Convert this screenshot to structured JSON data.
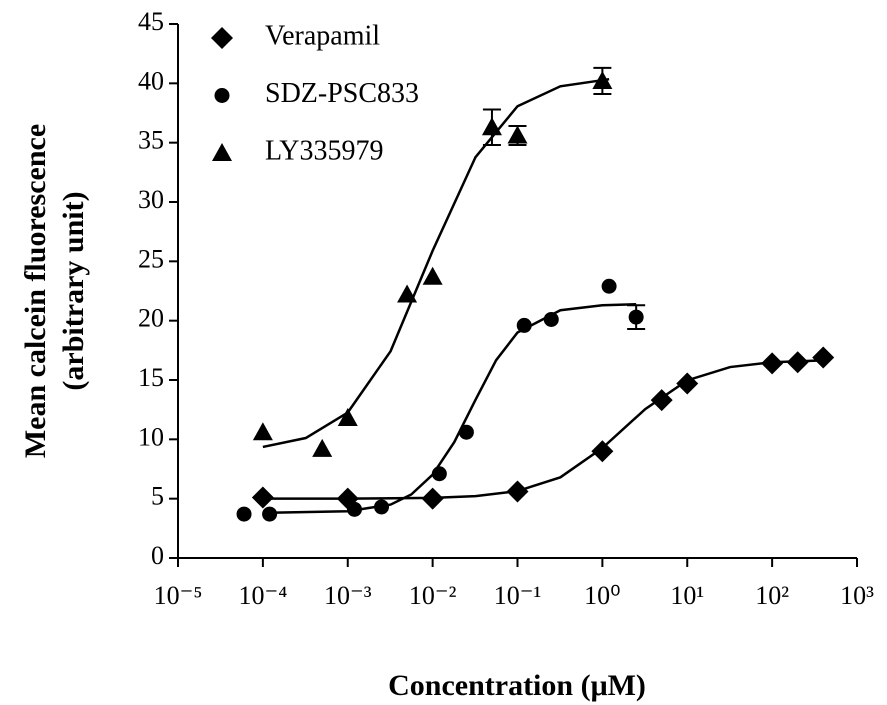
{
  "chart_data": {
    "type": "scatter",
    "x_label": "Concentration (μM)",
    "y_label": [
      "Mean calcein fluorescence",
      "(arbitrary unit)"
    ],
    "xscale": "log",
    "xlim": [
      1e-05,
      1000
    ],
    "xticks": [
      {
        "value": 1e-05,
        "label": "10⁻⁵"
      },
      {
        "value": 0.0001,
        "label": "10⁻⁴"
      },
      {
        "value": 0.001,
        "label": "10⁻³"
      },
      {
        "value": 0.01,
        "label": "10⁻²"
      },
      {
        "value": 0.1,
        "label": "10⁻¹"
      },
      {
        "value": 1,
        "label": "10⁰"
      },
      {
        "value": 10,
        "label": "10¹"
      },
      {
        "value": 100,
        "label": "10²"
      },
      {
        "value": 1000,
        "label": "10³"
      }
    ],
    "ylim": [
      0,
      45
    ],
    "yticks": [
      0,
      5,
      10,
      15,
      20,
      25,
      30,
      35,
      40,
      45
    ],
    "legend": "upper left",
    "series": [
      {
        "name": "Verapamil",
        "marker": "diamond",
        "color": "#000000",
        "x": [
          0.0001,
          0.001,
          0.01,
          0.1,
          1,
          5,
          10,
          100,
          200,
          400
        ],
        "values": [
          5.1,
          5.0,
          5.0,
          5.6,
          9.0,
          13.3,
          14.7,
          16.4,
          16.5,
          16.9
        ],
        "errors": [
          null,
          null,
          null,
          null,
          null,
          null,
          null,
          null,
          null,
          null
        ],
        "fit": {
          "x": [
            0.0001,
            0.001,
            0.01,
            0.032,
            0.1,
            0.32,
            1,
            3.2,
            10,
            32,
            100,
            400
          ],
          "values": [
            5.0,
            5.0,
            5.07,
            5.21,
            5.64,
            6.8,
            9.27,
            12.55,
            14.97,
            16.09,
            16.5,
            16.65
          ]
        }
      },
      {
        "name": "SDZ-PSC833",
        "marker": "circle",
        "color": "#000000",
        "x": [
          6e-05,
          0.00012,
          0.0012,
          0.0025,
          0.012,
          0.025,
          0.12,
          0.25,
          1.2,
          2.5
        ],
        "values": [
          3.7,
          3.7,
          4.1,
          4.3,
          7.1,
          10.6,
          19.6,
          20.1,
          22.9,
          20.3
        ],
        "errors": [
          null,
          null,
          null,
          null,
          null,
          null,
          null,
          null,
          null,
          1.0
        ],
        "fit": {
          "x": [
            0.0001,
            0.001,
            0.0032,
            0.0056,
            0.01,
            0.018,
            0.032,
            0.056,
            0.1,
            0.32,
            1,
            2.5
          ],
          "values": [
            3.8,
            3.94,
            4.5,
            5.35,
            7.02,
            9.77,
            13.33,
            16.67,
            19.0,
            20.88,
            21.3,
            21.38
          ]
        }
      },
      {
        "name": "LY335979",
        "marker": "triangle",
        "color": "#000000",
        "x": [
          0.0001,
          0.0005,
          0.001,
          0.005,
          0.01,
          0.05,
          0.1,
          1
        ],
        "values": [
          10.6,
          9.2,
          11.8,
          22.2,
          23.7,
          36.3,
          35.6,
          40.2
        ],
        "errors": [
          null,
          null,
          null,
          null,
          null,
          1.5,
          0.8,
          1.1
        ],
        "fit": {
          "x": [
            0.0001,
            0.00032,
            0.001,
            0.0032,
            0.01,
            0.032,
            0.1,
            0.32,
            1.2
          ],
          "values": [
            9.36,
            10.11,
            12.26,
            17.43,
            25.89,
            33.78,
            38.07,
            39.75,
            40.35
          ]
        }
      }
    ]
  }
}
